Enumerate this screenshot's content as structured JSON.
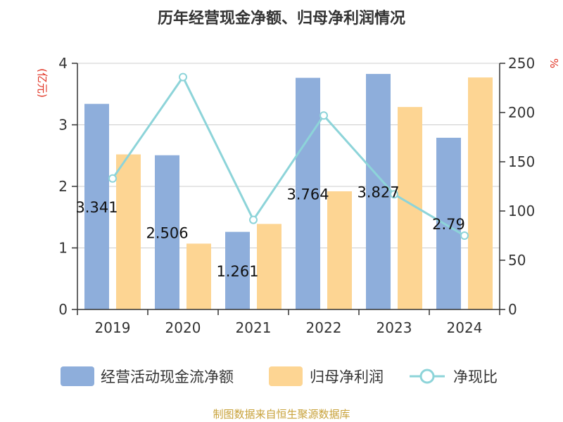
{
  "title": "历年经营现金净额、归母净利润情况",
  "left_axis_unit": "(亿元)",
  "right_axis_unit": "%",
  "source_text": "制图数据来自恒生聚源数据库",
  "colors": {
    "cash_bar": "#8eaedb",
    "profit_bar": "#fdd593",
    "ratio_line": "#8dd4d9",
    "grid": "#cccccc",
    "axis": "#333333"
  },
  "chart_data": {
    "type": "bar",
    "categories": [
      "2019",
      "2020",
      "2021",
      "2022",
      "2023",
      "2024"
    ],
    "series": [
      {
        "name": "经营活动现金流净额",
        "kind": "bar",
        "axis": "left",
        "values": [
          3.341,
          2.506,
          1.261,
          3.764,
          3.827,
          2.79
        ],
        "labels": [
          "3.341",
          "2.506",
          "1.261",
          "3.764",
          "3.827",
          "2.79"
        ]
      },
      {
        "name": "归母净利润",
        "kind": "bar",
        "axis": "left",
        "values": [
          2.52,
          1.07,
          1.39,
          1.92,
          3.29,
          3.77
        ]
      },
      {
        "name": "净现比",
        "kind": "line",
        "axis": "right",
        "values": [
          133,
          236,
          91,
          197,
          117,
          75
        ]
      }
    ],
    "ylim_left": [
      0,
      4
    ],
    "yticks_left": [
      0,
      1,
      2,
      3,
      4
    ],
    "ylim_right": [
      0,
      250
    ],
    "yticks_right": [
      0,
      50,
      100,
      150,
      200,
      250
    ],
    "grid": true,
    "legend_position": "bottom"
  }
}
